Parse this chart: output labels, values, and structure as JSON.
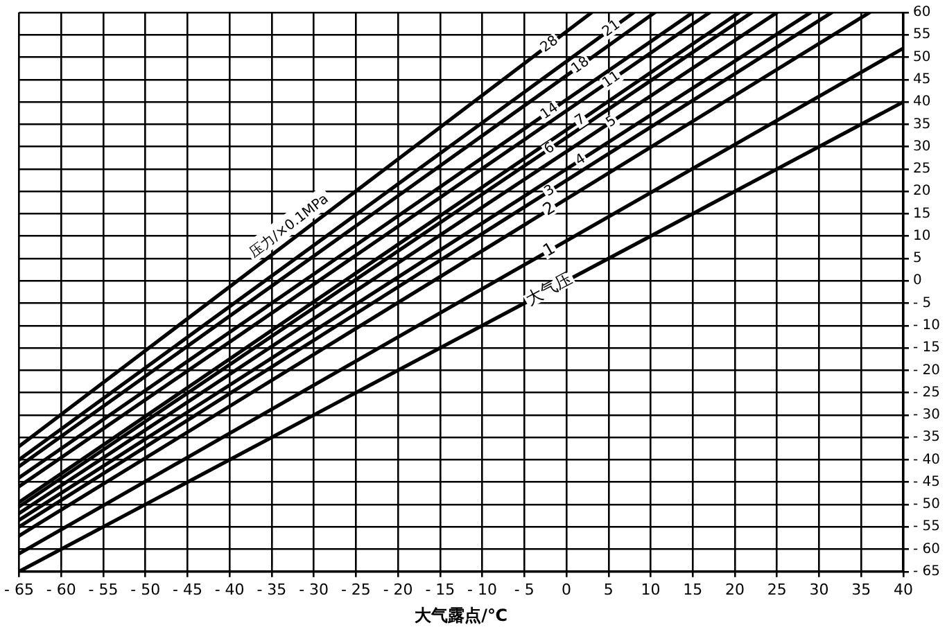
{
  "chart_data": {
    "type": "line",
    "xlabel": "大气露点/℃",
    "annotations": [
      {
        "text": "压力/×0.1MPa",
        "x": -32,
        "y": 10
      }
    ],
    "xlim": [
      -65,
      40
    ],
    "xticks": [
      -65,
      -60,
      -55,
      -50,
      -45,
      -40,
      -35,
      -30,
      -25,
      -20,
      -15,
      -10,
      -5,
      0,
      5,
      10,
      15,
      20,
      25,
      30,
      35,
      40
    ],
    "ylim": [
      -65,
      60
    ],
    "yticks": [
      -65,
      -60,
      -55,
      -50,
      -45,
      -40,
      -35,
      -30,
      -25,
      -20,
      -15,
      -10,
      -5,
      0,
      5,
      10,
      15,
      20,
      25,
      30,
      35,
      40,
      45,
      50,
      55,
      60
    ],
    "grid": true,
    "legend": false,
    "marker": "none",
    "line_style": "solid",
    "series": [
      {
        "name": "大气压",
        "color": "#000000",
        "x": [
          -65,
          40
        ],
        "values": [
          -65,
          40
        ]
      },
      {
        "name": "1",
        "color": "#000000",
        "x": [
          -65,
          40
        ],
        "values": [
          -61,
          52
        ]
      },
      {
        "name": "2",
        "color": "#000000",
        "x": [
          -65,
          36
        ],
        "values": [
          -57,
          60
        ]
      },
      {
        "name": "3",
        "color": "#000000",
        "x": [
          -65,
          31.5
        ],
        "values": [
          -55,
          60
        ]
      },
      {
        "name": "4",
        "color": "#000000",
        "x": [
          -65,
          29
        ],
        "values": [
          -53.5,
          60
        ]
      },
      {
        "name": "5",
        "color": "#000000",
        "x": [
          -65,
          25
        ],
        "values": [
          -52,
          60
        ]
      },
      {
        "name": "6",
        "color": "#000000",
        "x": [
          -65,
          22
        ],
        "values": [
          -50.5,
          60
        ]
      },
      {
        "name": "7",
        "color": "#000000",
        "x": [
          -65,
          20.5
        ],
        "values": [
          -49.5,
          60
        ]
      },
      {
        "name": "11",
        "color": "#000000",
        "x": [
          -65,
          17
        ],
        "values": [
          -46,
          60
        ]
      },
      {
        "name": "14",
        "color": "#000000",
        "x": [
          -65,
          15
        ],
        "values": [
          -44,
          60
        ]
      },
      {
        "name": "18",
        "color": "#000000",
        "x": [
          -65,
          10.5
        ],
        "values": [
          -41.5,
          60
        ]
      },
      {
        "name": "21",
        "color": "#000000",
        "x": [
          -65,
          8
        ],
        "values": [
          -40,
          60
        ]
      },
      {
        "name": "28",
        "color": "#000000",
        "x": [
          -65,
          3
        ],
        "values": [
          -37,
          60
        ]
      }
    ]
  }
}
